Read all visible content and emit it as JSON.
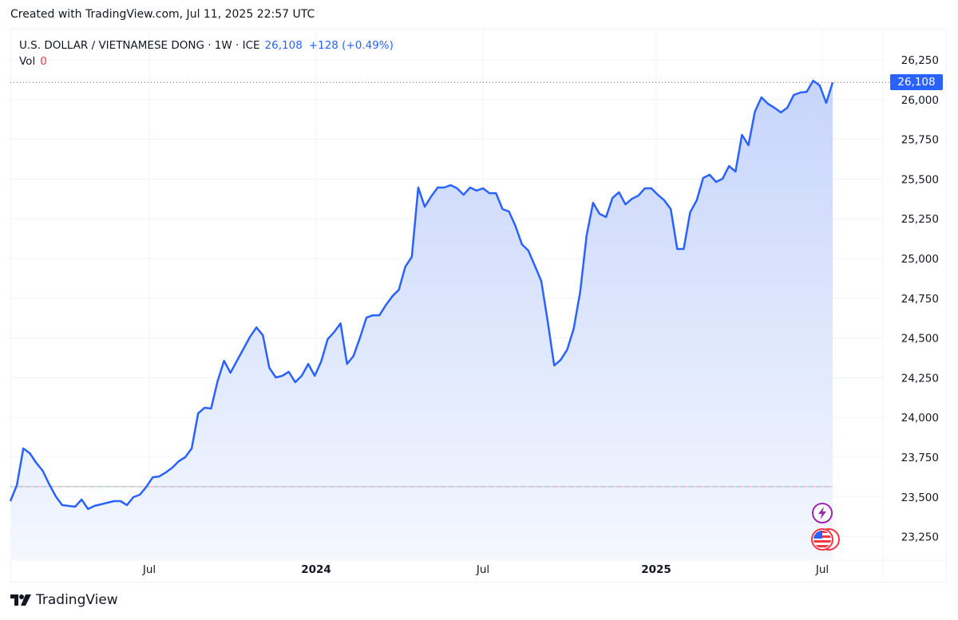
{
  "header": {
    "created": "Created with TradingView.com, Jul 11, 2025 22:57 UTC"
  },
  "legend": {
    "symbol": "U.S. DOLLAR / VIETNAMESE DONG · 1W · ICE",
    "last": "26,108",
    "change": "+128 (+0.49%)",
    "vol_label": "Vol",
    "vol_value": "0"
  },
  "price_tag": "26,108",
  "footer": {
    "brand": "TradingView"
  },
  "colors": {
    "line": "#2962ff",
    "fill_top": "#c7d5fb",
    "fill_bottom": "#f4f7fe",
    "grid": "#f0f3fa",
    "baseline_teal": "#5fc9c2",
    "baseline_red": "#f7a6ac",
    "event_purple": "#9c27b0",
    "event_red": "#f23645"
  },
  "events": [
    {
      "type": "lightning-icon",
      "label": "event"
    },
    {
      "type": "us-flag-icon",
      "label": "economic-event"
    }
  ],
  "chart_data": {
    "type": "area",
    "title": "U.S. DOLLAR / VIETNAMESE DONG · 1W · ICE",
    "xlabel": "",
    "ylabel": "",
    "interval": "1W",
    "last_value": 26108,
    "baseline_value": 23565,
    "ylim": [
      23000,
      26400
    ],
    "yticks": [
      23250,
      23500,
      23750,
      24000,
      24250,
      24500,
      24750,
      25000,
      25250,
      25500,
      25750,
      26000,
      26250
    ],
    "ytick_labels": [
      "23,250",
      "23,500",
      "23,750",
      "24,000",
      "24,250",
      "24,500",
      "24,750",
      "25,000",
      "25,250",
      "25,500",
      "25,750",
      "26,000",
      "26,250"
    ],
    "xticks": [
      {
        "label": "Jul",
        "index": 21,
        "bold": false
      },
      {
        "label": "2024",
        "index": 47,
        "bold": true
      },
      {
        "label": "Jul",
        "index": 73,
        "bold": false
      },
      {
        "label": "2025",
        "index": 100,
        "bold": true
      },
      {
        "label": "Jul",
        "index": 126,
        "bold": false
      }
    ],
    "grid": true,
    "legend_position": "top-left",
    "values": [
      23474,
      23574,
      23805,
      23775,
      23715,
      23665,
      23580,
      23504,
      23449,
      23444,
      23439,
      23484,
      23424,
      23444,
      23454,
      23464,
      23474,
      23474,
      23449,
      23499,
      23514,
      23564,
      23624,
      23629,
      23654,
      23684,
      23725,
      23750,
      23805,
      24026,
      24061,
      24056,
      24227,
      24357,
      24281,
      24357,
      24432,
      24507,
      24567,
      24517,
      24312,
      24252,
      24262,
      24287,
      24222,
      24262,
      24337,
      24262,
      24352,
      24492,
      24537,
      24592,
      24337,
      24387,
      24502,
      24628,
      24643,
      24643,
      24708,
      24763,
      24803,
      24949,
      25010,
      25447,
      25326,
      25391,
      25447,
      25447,
      25462,
      25442,
      25401,
      25447,
      25427,
      25442,
      25411,
      25411,
      25311,
      25296,
      25206,
      25090,
      25050,
      24955,
      24859,
      24603,
      24327,
      24362,
      24427,
      24558,
      24789,
      25145,
      25351,
      25281,
      25261,
      25381,
      25417,
      25341,
      25376,
      25396,
      25442,
      25442,
      25401,
      25366,
      25311,
      25060,
      25060,
      25291,
      25366,
      25507,
      25527,
      25482,
      25502,
      25582,
      25547,
      25778,
      25713,
      25924,
      26014,
      25974,
      25949,
      25919,
      25949,
      26029,
      26044,
      26049,
      26119,
      26089,
      25979,
      26108
    ]
  }
}
